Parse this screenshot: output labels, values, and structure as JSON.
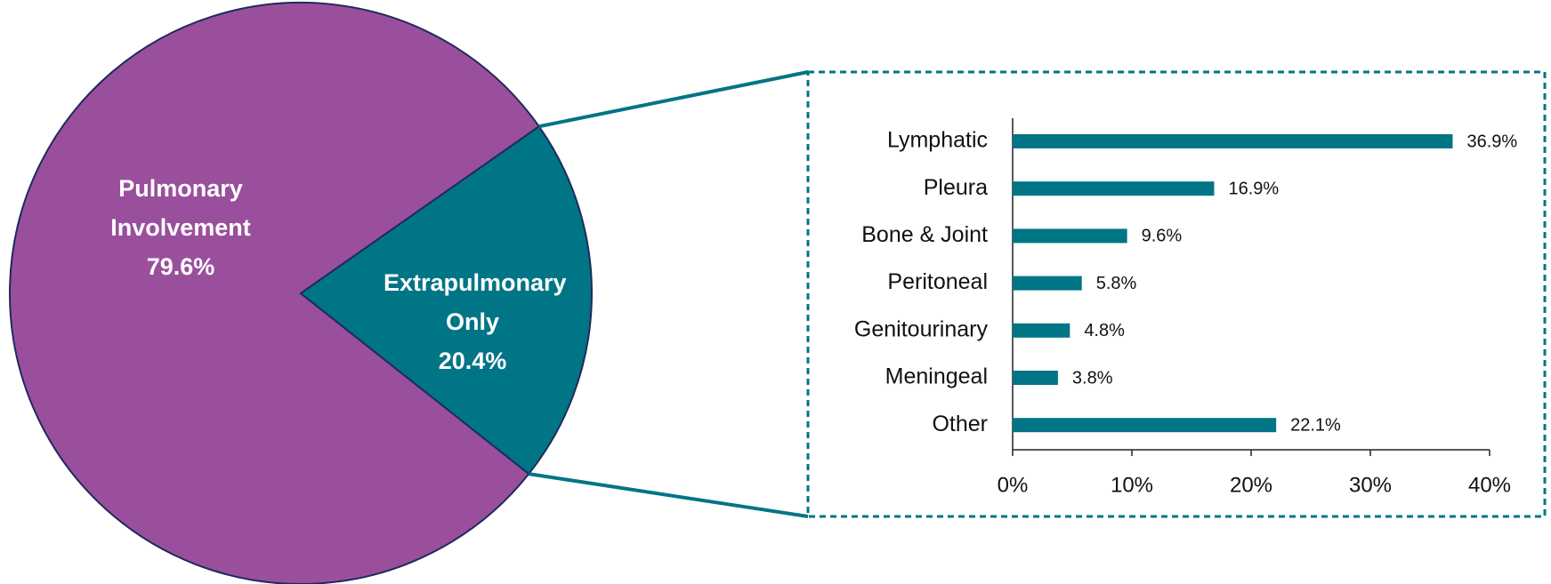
{
  "chart_data": [
    {
      "type": "pie",
      "labels": [
        "Pulmonary Involvement",
        "Extrapulmonary Only"
      ],
      "values": [
        79.6,
        20.4
      ],
      "value_labels": [
        "79.6%",
        "20.4%"
      ],
      "colors": [
        "#9a4f9c",
        "#007585"
      ]
    },
    {
      "type": "bar",
      "orientation": "horizontal",
      "categories": [
        "Lymphatic",
        "Pleura",
        "Bone & Joint",
        "Peritoneal",
        "Genitourinary",
        "Meningeal",
        "Other"
      ],
      "values": [
        36.9,
        16.9,
        9.6,
        5.8,
        4.8,
        3.8,
        22.1
      ],
      "value_labels": [
        "36.9%",
        "16.9%",
        "9.6%",
        "5.8%",
        "4.8%",
        "3.8%",
        "22.1%"
      ],
      "color": "#007585",
      "xlim": [
        0,
        40
      ],
      "xticks": [
        {
          "value": 0,
          "label": "0%"
        },
        {
          "value": 10,
          "label": "10%"
        },
        {
          "value": 20,
          "label": "20%"
        },
        {
          "value": 30,
          "label": "30%"
        },
        {
          "value": 40,
          "label": "40%"
        }
      ],
      "grid": false
    }
  ]
}
